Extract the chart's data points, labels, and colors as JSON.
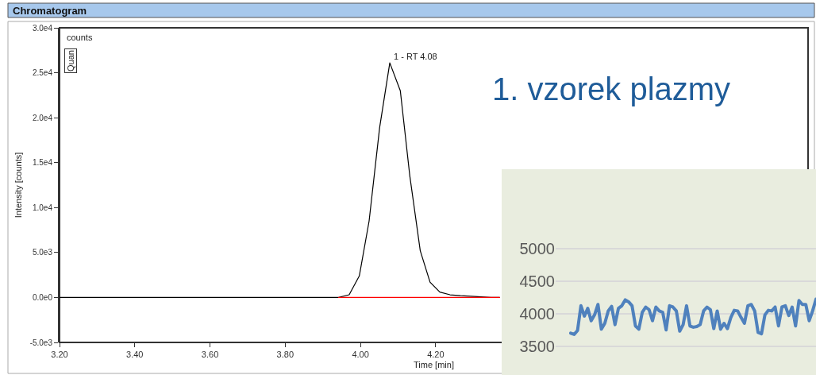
{
  "chart_data": [
    {
      "type": "line",
      "title": "Chromatogram",
      "xlabel": "Time [min]",
      "ylabel": "Intensity [counts]",
      "x": [
        3.2,
        3.5,
        3.8,
        3.942,
        3.97,
        3.997,
        4.023,
        4.051,
        4.078,
        4.106,
        4.131,
        4.159,
        4.185,
        4.211,
        4.238,
        4.266,
        4.347,
        4.37
      ],
      "series": [
        {
          "color": "#000000",
          "values": [
            0,
            0,
            0,
            0,
            300,
            2400,
            8500,
            18900,
            26100,
            23000,
            13600,
            5200,
            1700,
            600,
            300,
            200,
            0,
            0
          ]
        },
        {
          "color": "#ff0000",
          "x": [
            3.942,
            4.37
          ],
          "values": [
            0,
            0
          ]
        }
      ],
      "xlim": [
        3.2,
        5.19
      ],
      "xticks": [
        {
          "value": 3.2,
          "label": "3.20"
        },
        {
          "value": 3.4,
          "label": "3.40"
        },
        {
          "value": 3.6,
          "label": "3.60"
        },
        {
          "value": 3.8,
          "label": "3.80"
        },
        {
          "value": 4.0,
          "label": "4.00"
        },
        {
          "value": 4.2,
          "label": "4.20"
        }
      ],
      "ylim": [
        -5000,
        30000
      ],
      "yticks": [
        {
          "value": -5000,
          "label": "-5.0e3"
        },
        {
          "value": 0,
          "label": "0.0e0"
        },
        {
          "value": 5000,
          "label": "5.0e3"
        },
        {
          "value": 10000,
          "label": "1.0e4"
        },
        {
          "value": 15000,
          "label": "1.5e4"
        },
        {
          "value": 20000,
          "label": "2.0e4"
        },
        {
          "value": 25000,
          "label": "2.5e4"
        },
        {
          "value": 30000,
          "label": "3.0e4"
        }
      ],
      "annotations": [
        "counts",
        "Quan",
        {
          "text": "1 - RT 4.08",
          "x": 4.08,
          "y": 26100
        },
        "1. vzorek plazmy"
      ]
    },
    {
      "type": "line",
      "categories": [
        null,
        null,
        null,
        null,
        null,
        null,
        null,
        null,
        null,
        null,
        null,
        null,
        null,
        null,
        null,
        null,
        null,
        null,
        null,
        null,
        null,
        null,
        null,
        null,
        null,
        null,
        null,
        null,
        null,
        null,
        null,
        null,
        null,
        null,
        null,
        null,
        null,
        null,
        null,
        null,
        null,
        null,
        null,
        null,
        null,
        null,
        null,
        null,
        null,
        null,
        null,
        null,
        null,
        null,
        null,
        null,
        null,
        null,
        null,
        null,
        null,
        null,
        null,
        null,
        null,
        null,
        null,
        null,
        null,
        null,
        null,
        null,
        null
      ],
      "series": [
        {
          "color": "#4f81bd",
          "values": [
            3700,
            3680,
            3740,
            4120,
            3960,
            4080,
            3890,
            3980,
            4140,
            3760,
            3850,
            4040,
            4110,
            3830,
            4080,
            4120,
            4210,
            4180,
            4120,
            3810,
            3760,
            4020,
            4100,
            4060,
            3890,
            4100,
            4040,
            4020,
            3750,
            4120,
            4100,
            4040,
            3730,
            3830,
            4120,
            3810,
            3790,
            3800,
            3830,
            4040,
            4100,
            4060,
            3770,
            4040,
            3760,
            3850,
            3770,
            3940,
            4050,
            4040,
            3940,
            3850,
            4120,
            4140,
            4040,
            3710,
            3690,
            3980,
            4050,
            4040,
            4100,
            3810,
            4100,
            4120,
            3970,
            4100,
            3810,
            4200,
            4140,
            4140,
            3890,
            4040,
            4220
          ]
        }
      ],
      "ylim": [
        3057,
        6216
      ],
      "yticks": [
        3500,
        4000,
        4500,
        5000
      ],
      "grid": "y",
      "tick_labels": "y"
    }
  ]
}
